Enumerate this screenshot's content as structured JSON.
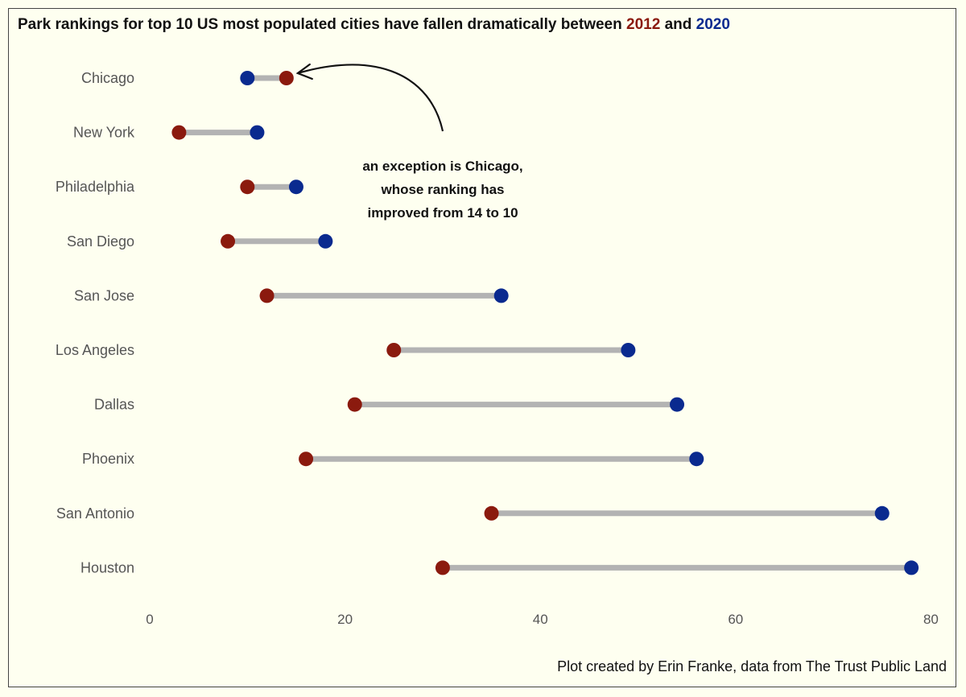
{
  "title": {
    "prefix": "Park rankings for top 10 US most populated cities have fallen dramatically between ",
    "year_a": "2012",
    "joiner": " and ",
    "year_b": "2020"
  },
  "caption": "Plot created by Erin Franke, data from The Trust Public Land",
  "annotation": {
    "lines": [
      "an exception is Chicago,",
      "whose ranking has",
      "improved from 14 to 10"
    ],
    "points_to": "Chicago"
  },
  "colors": {
    "2012": "#8b1a0e",
    "2020": "#0a2a8f",
    "segment": "#b3b3b3",
    "background": "#fefff0"
  },
  "chart_data": {
    "type": "dumbbell",
    "title": "Park rankings for top 10 US most populated cities have fallen dramatically between 2012 and 2020",
    "xlabel": "",
    "ylabel": "",
    "xlim": [
      0,
      80
    ],
    "x_ticks": [
      0,
      20,
      40,
      60,
      80
    ],
    "grid": false,
    "legend": "none (years colored in title)",
    "categories": [
      "Chicago",
      "New York",
      "Philadelphia",
      "San Diego",
      "San Jose",
      "Los Angeles",
      "Dallas",
      "Phoenix",
      "San Antonio",
      "Houston"
    ],
    "series": [
      {
        "name": "2012",
        "values": [
          14,
          3,
          10,
          8,
          12,
          25,
          21,
          16,
          35,
          30
        ]
      },
      {
        "name": "2020",
        "values": [
          10,
          11,
          15,
          18,
          36,
          49,
          54,
          56,
          75,
          78
        ]
      }
    ]
  }
}
